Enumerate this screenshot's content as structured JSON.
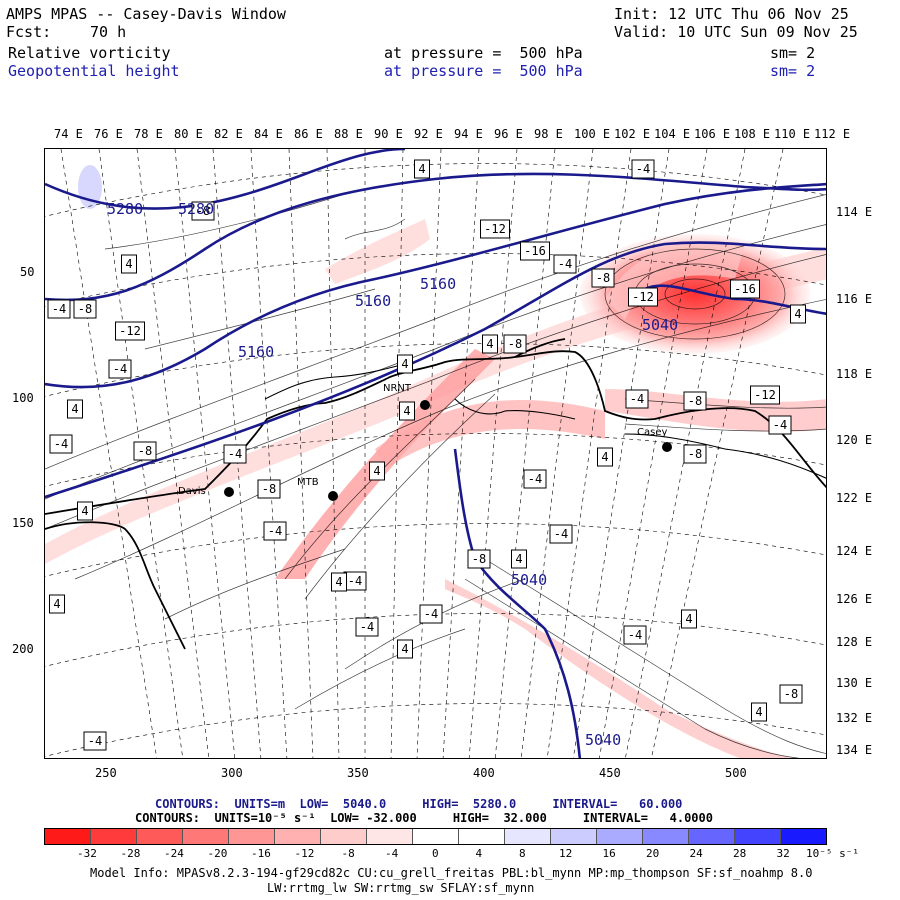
{
  "header": {
    "title": "AMPS MPAS -- Casey-Davis Window",
    "fcst_label": "Fcst:",
    "fcst_value": "70 h",
    "init": "Init: 12 UTC Thu 06 Nov 25",
    "valid": "Valid: 10 UTC Sun 09 Nov 25",
    "field1": "Relative vorticity",
    "field2": "Geopotential height",
    "pressure1": "at pressure =  500 hPa",
    "pressure2": "at pressure =  500 hPa",
    "sm1": "sm= 2",
    "sm2": "sm= 2"
  },
  "axes": {
    "top_lon": [
      "74 E",
      "76 E",
      "78 E",
      "80 E",
      "82 E",
      "84 E",
      "86 E",
      "88 E",
      "90 E",
      "92 E",
      "94 E",
      "96 E",
      "98 E",
      "100 E",
      "102 E",
      "104 E",
      "106 E",
      "108 E",
      "110 E",
      "112 E"
    ],
    "right_lon": [
      "114 E",
      "116 E",
      "118 E",
      "120 E",
      "122 E",
      "124 E",
      "126 E",
      "128 E",
      "130 E",
      "132 E",
      "134 E"
    ],
    "left_y": [
      "50",
      "100",
      "150",
      "200"
    ],
    "bottom_x": [
      "250",
      "300",
      "350",
      "400",
      "450",
      "500"
    ]
  },
  "map": {
    "height_contour_labels": [
      "5280",
      "5280",
      "5160",
      "5160",
      "5160",
      "5040",
      "5040",
      "5040"
    ],
    "vorticity_labels": [
      "4",
      "-4",
      "-8",
      "-12",
      "-16",
      "4",
      "-4",
      "-8",
      "-12",
      "-16",
      "4",
      "-4",
      "-8",
      "-12",
      "4",
      "-4",
      "-8",
      "4",
      "-4",
      "-8",
      "-12",
      "4",
      "-4",
      "4",
      "-4",
      "-8",
      "-4",
      "-8",
      "4",
      "-8",
      "4",
      "-4",
      "4",
      "-4",
      "4",
      "-4",
      "-8",
      "4",
      "-4",
      "4",
      "-4",
      "-4",
      "4",
      "-4",
      "4",
      "-8",
      "4",
      "-4"
    ],
    "stations": [
      "Davis",
      "MTB",
      "NRNT",
      "Casey"
    ]
  },
  "contour_info": {
    "line1": "CONTOURS:  UNITS=m  LOW=  5040.0     HIGH=  5280.0     INTERVAL=   60.000",
    "line2": "CONTOURS:  UNITS=10⁻⁵ s⁻¹  LOW= -32.000     HIGH=  32.000     INTERVAL=   4.0000"
  },
  "colorbar": {
    "ticks": [
      "-32",
      "-28",
      "-24",
      "-20",
      "-16",
      "-12",
      "-8",
      "-4",
      "0",
      "4",
      "8",
      "12",
      "16",
      "20",
      "24",
      "28",
      "32"
    ],
    "unit": "10⁻⁵ s⁻¹",
    "colors": [
      "#ff1a1a",
      "#ff3b3b",
      "#ff5a5a",
      "#ff7878",
      "#ff9696",
      "#ffb0b0",
      "#ffcccc",
      "#ffe6e6",
      "#ffffff",
      "#ffffff",
      "#e6e6ff",
      "#ccccff",
      "#aaaaff",
      "#8888ff",
      "#6666ff",
      "#4444ff",
      "#1a1aff"
    ]
  },
  "model_info": {
    "line1": "Model Info: MPASv8.2.3-194-gf29cd82c CU:cu_grell_freitas PBL:bl_mynn MP:mp_thompson SF:sf_noahmp 8.0",
    "line2": "LW:rrtmg_lw SW:rrtmg_sw SFLAY:sf_mynn"
  }
}
